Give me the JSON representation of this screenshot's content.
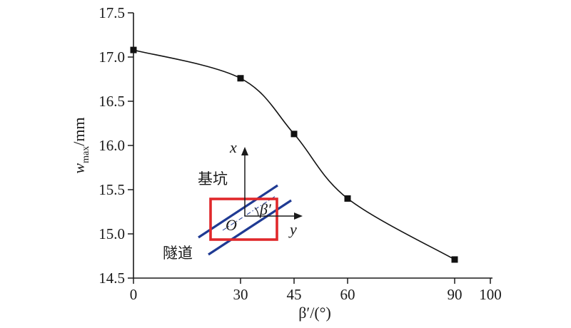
{
  "chart_data": {
    "type": "line",
    "x": [
      0,
      30,
      45,
      60,
      90
    ],
    "y": [
      17.08,
      16.76,
      16.13,
      15.4,
      14.71
    ],
    "xlim": [
      0,
      100
    ],
    "ylim": [
      14.5,
      17.5
    ],
    "xticks": [
      "0",
      "30",
      "45",
      "60",
      "90",
      "100"
    ],
    "yticks": [
      "14.5",
      "15.0",
      "15.5",
      "16.0",
      "16.5",
      "17.0",
      "17.5"
    ],
    "xlabel": "β′/(°)",
    "ylabel_main": "w",
    "ylabel_sub": "max",
    "ylabel_unit": "/mm",
    "marker": "square",
    "smooth": true,
    "grid": false,
    "inset": {
      "axis_x": "x",
      "axis_y": "y",
      "origin": "O",
      "angle": "β′",
      "label_pit": "基坑",
      "label_tunnel": "隧道",
      "pit_color": "#e0282b",
      "tunnel_color": "#1f3a93"
    },
    "colors": {
      "line": "#111111",
      "marker": "#111111",
      "axis": "#1a1a1a"
    }
  }
}
